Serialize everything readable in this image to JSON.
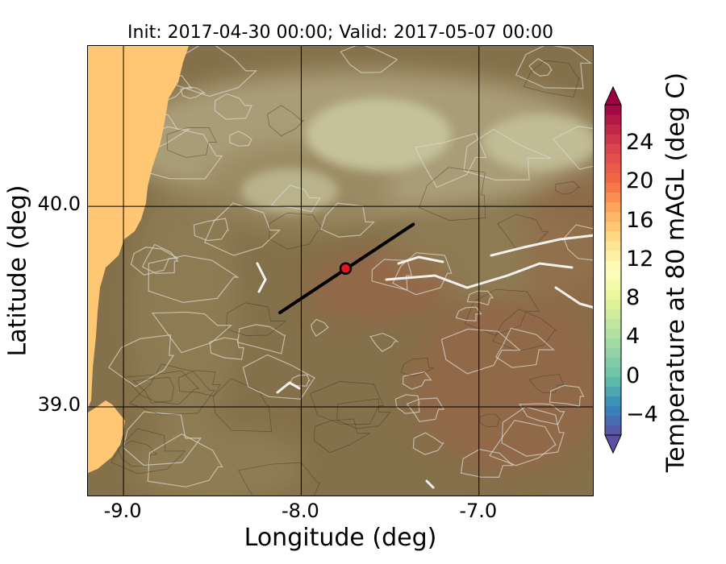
{
  "chart_data": {
    "type": "heatmap",
    "title": "Init: 2017-04-30 00:00; Valid: 2017-05-07 00:00",
    "xlabel": "Longitude (deg)",
    "ylabel": "Latitude (deg)",
    "xlim": [
      -9.2,
      -6.35
    ],
    "ylim": [
      38.55,
      40.8
    ],
    "xticks": [
      {
        "value": -9.0,
        "label": "-9.0"
      },
      {
        "value": -8.0,
        "label": "-8.0"
      },
      {
        "value": -7.0,
        "label": "-7.0"
      }
    ],
    "yticks": [
      {
        "value": 40.0,
        "label": "40.0"
      },
      {
        "value": 39.0,
        "label": "39.0"
      }
    ],
    "grid": true,
    "colorbar": {
      "label": "Temperature at 80 mAGL (deg C)",
      "range": [
        -6,
        28
      ],
      "extend": "both",
      "ticks": [
        {
          "value": -4,
          "label": "−4"
        },
        {
          "value": 0,
          "label": "0"
        },
        {
          "value": 4,
          "label": "4"
        },
        {
          "value": 8,
          "label": "8"
        },
        {
          "value": 12,
          "label": "12"
        },
        {
          "value": 16,
          "label": "16"
        },
        {
          "value": 20,
          "label": "20"
        },
        {
          "value": 24,
          "label": "24"
        }
      ]
    },
    "cross_section_line": {
      "start": [
        -8.12,
        39.47
      ],
      "end": [
        -7.37,
        39.91
      ]
    },
    "marker": {
      "lon": -7.75,
      "lat": 39.69,
      "color": "#e8161a"
    },
    "colors": {
      "ocean": "#ffc673",
      "land_dark": "#84704a",
      "land_mid": "#94845c",
      "highlands": "#b0a680",
      "peaks": "#c7c49c",
      "warm_land": "#94684a",
      "rivers": "#ffffff",
      "contour_light": "#d8d4c8",
      "contour_dark": "#3c3424"
    }
  }
}
